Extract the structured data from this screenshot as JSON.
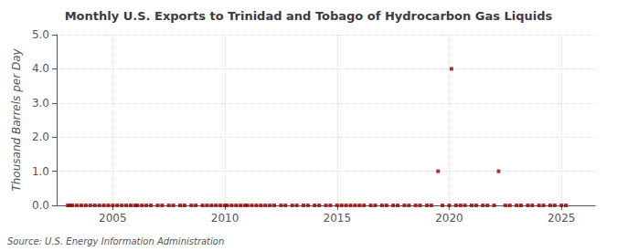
{
  "chart_data": {
    "type": "scatter",
    "title": "Monthly U.S. Exports to Trinidad and Tobago of Hydrocarbon Gas Liquids",
    "ylabel": "Thousand Barrels per Day",
    "annotation": "Source: U.S. Energy Information Administration",
    "color": "#990000",
    "marker": "square",
    "grid": true,
    "xlim": [
      2002.5,
      2026.5
    ],
    "xticks": [
      2005,
      2010,
      2015,
      2020,
      2025
    ],
    "ylim": [
      0.0,
      5.0
    ],
    "yticks": [
      {
        "value": 0,
        "label": "0.0"
      },
      {
        "value": 1,
        "label": "1.0"
      },
      {
        "value": 2,
        "label": "2.0"
      },
      {
        "value": 3,
        "label": "3.0"
      },
      {
        "value": 4,
        "label": "4.0"
      },
      {
        "value": 5,
        "label": "5.0"
      }
    ],
    "x": [
      2003.0,
      2003.1,
      2003.2,
      2003.4,
      2003.6,
      2003.8,
      2004.0,
      2004.2,
      2004.4,
      2004.6,
      2004.8,
      2005.0,
      2005.2,
      2005.4,
      2005.6,
      2005.8,
      2006.0,
      2006.1,
      2006.3,
      2006.5,
      2006.7,
      2007.0,
      2007.2,
      2007.5,
      2007.7,
      2008.0,
      2008.2,
      2008.5,
      2008.7,
      2009.0,
      2009.2,
      2009.4,
      2009.6,
      2009.8,
      2010.0,
      2010.1,
      2010.3,
      2010.5,
      2010.7,
      2010.9,
      2011.0,
      2011.2,
      2011.4,
      2011.6,
      2011.8,
      2012.0,
      2012.2,
      2012.5,
      2012.7,
      2013.0,
      2013.2,
      2013.5,
      2013.7,
      2014.0,
      2014.2,
      2014.5,
      2014.7,
      2015.0,
      2015.2,
      2015.4,
      2015.6,
      2015.8,
      2016.0,
      2016.2,
      2016.5,
      2016.7,
      2017.0,
      2017.2,
      2017.5,
      2017.7,
      2018.0,
      2018.2,
      2018.5,
      2018.7,
      2019.0,
      2019.2,
      2019.5,
      2019.7,
      2020.0,
      2020.1,
      2020.3,
      2020.5,
      2020.7,
      2021.0,
      2021.2,
      2021.5,
      2021.7,
      2022.0,
      2022.2,
      2022.5,
      2022.7,
      2023.0,
      2023.2,
      2023.5,
      2023.7,
      2024.0,
      2024.2,
      2024.5,
      2024.7,
      2025.0,
      2025.2
    ],
    "values": [
      0.0,
      0.0,
      0.0,
      0.0,
      0.0,
      0.0,
      0.0,
      0.0,
      0.0,
      0.0,
      0.0,
      0.0,
      0.0,
      0.0,
      0.0,
      0.0,
      0.0,
      0.0,
      0.0,
      0.0,
      0.0,
      0.0,
      0.0,
      0.0,
      0.0,
      0.0,
      0.0,
      0.0,
      0.0,
      0.0,
      0.0,
      0.0,
      0.0,
      0.0,
      0.0,
      0.0,
      0.0,
      0.0,
      0.0,
      0.0,
      0.0,
      0.0,
      0.0,
      0.0,
      0.0,
      0.0,
      0.0,
      0.0,
      0.0,
      0.0,
      0.0,
      0.0,
      0.0,
      0.0,
      0.0,
      0.0,
      0.0,
      0.0,
      0.0,
      0.0,
      0.0,
      0.0,
      0.0,
      0.0,
      0.0,
      0.0,
      0.0,
      0.0,
      0.0,
      0.0,
      0.0,
      0.0,
      0.0,
      0.0,
      0.0,
      0.0,
      1.0,
      0.0,
      0.0,
      4.0,
      0.0,
      0.0,
      0.0,
      0.0,
      0.0,
      0.0,
      0.0,
      0.0,
      1.0,
      0.0,
      0.0,
      0.0,
      0.0,
      0.0,
      0.0,
      0.0,
      0.0,
      0.0,
      0.0,
      0.0,
      0.0
    ]
  }
}
